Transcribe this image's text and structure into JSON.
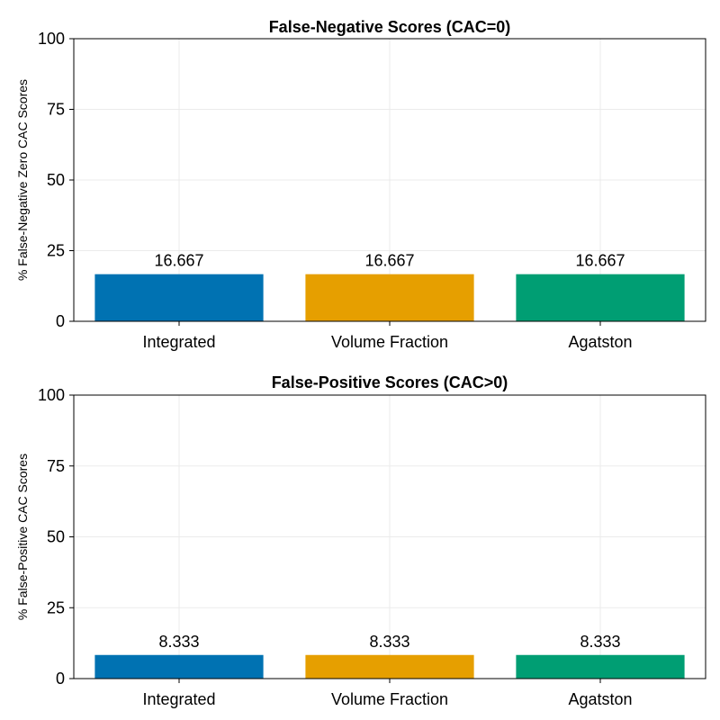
{
  "chart_data": [
    {
      "type": "bar",
      "title": "False-Negative Scores (CAC=0)",
      "xlabel": "",
      "ylabel": "% False-Negative Zero CAC Scores",
      "categories": [
        "Integrated",
        "Volume Fraction",
        "Agatston"
      ],
      "values": [
        16.667,
        16.667,
        16.667
      ],
      "data_labels": [
        "16.667",
        "16.667",
        "16.667"
      ],
      "colors": [
        "#0072B2",
        "#E69F00",
        "#009E73"
      ],
      "ylim": [
        0,
        100
      ],
      "yticks": [
        0,
        25,
        50,
        75,
        100
      ],
      "grid": true,
      "legend": "none"
    },
    {
      "type": "bar",
      "title": "False-Positive Scores (CAC>0)",
      "xlabel": "",
      "ylabel": "% False-Positive CAC Scores",
      "categories": [
        "Integrated",
        "Volume Fraction",
        "Agatston"
      ],
      "values": [
        8.333,
        8.333,
        8.333
      ],
      "data_labels": [
        "8.333",
        "8.333",
        "8.333"
      ],
      "colors": [
        "#0072B2",
        "#E69F00",
        "#009E73"
      ],
      "ylim": [
        0,
        100
      ],
      "yticks": [
        0,
        25,
        50,
        75,
        100
      ],
      "grid": true,
      "legend": "none"
    }
  ]
}
